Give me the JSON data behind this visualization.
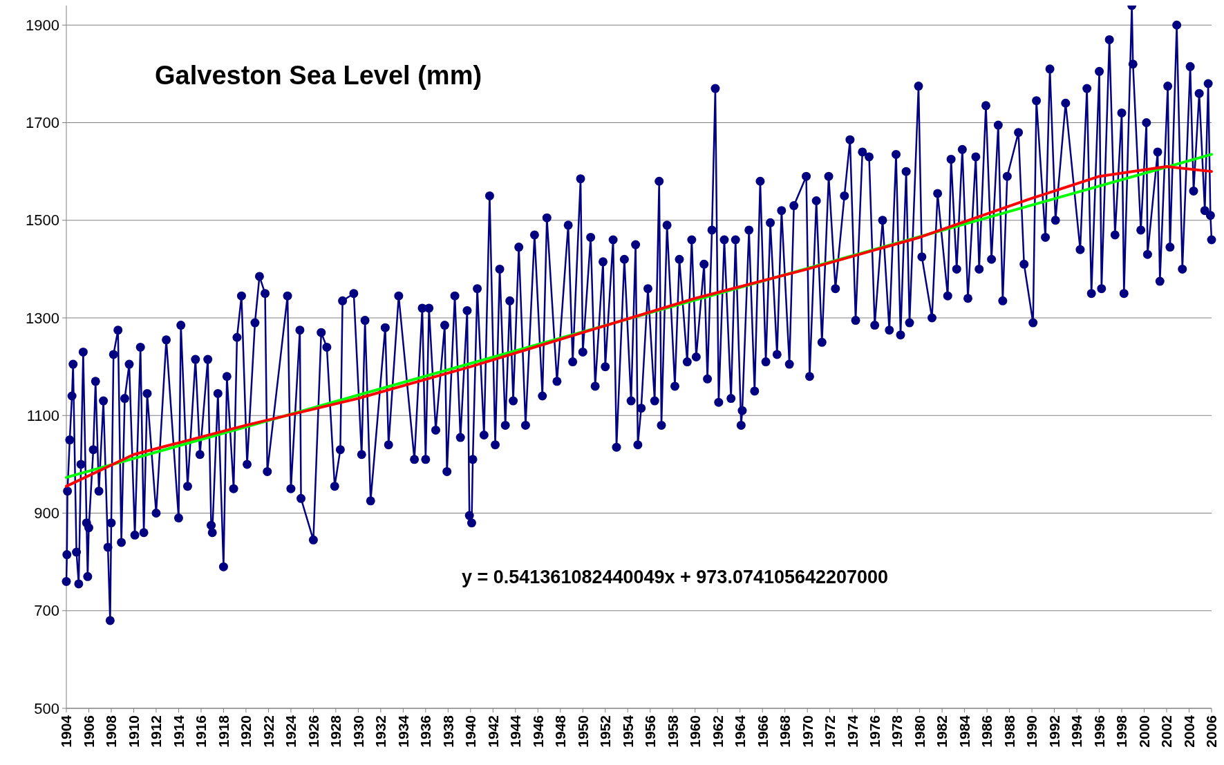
{
  "chart_data": {
    "type": "line",
    "title": "Galveston Sea Level (mm)",
    "annotations": [
      "y = 0.541361082440049x + 973.074105642207000"
    ],
    "xlim": [
      1904,
      2006
    ],
    "xticks": [
      1904,
      1906,
      1908,
      1910,
      1912,
      1914,
      1916,
      1918,
      1920,
      1922,
      1924,
      1926,
      1928,
      1930,
      1932,
      1934,
      1936,
      1938,
      1940,
      1942,
      1944,
      1946,
      1948,
      1950,
      1952,
      1954,
      1956,
      1958,
      1960,
      1962,
      1964,
      1966,
      1968,
      1970,
      1972,
      1974,
      1976,
      1978,
      1980,
      1982,
      1984,
      1986,
      1988,
      1990,
      1992,
      1994,
      1996,
      1998,
      2000,
      2002,
      2004,
      2006
    ],
    "ylim": [
      500,
      1940
    ],
    "yticks": [
      500,
      700,
      900,
      1100,
      1300,
      1500,
      1700,
      1900
    ],
    "grid": "y",
    "marker": "circle",
    "line_style": "solid",
    "series": [
      {
        "color": "#000080",
        "x": [
          1904.0,
          1904.05,
          1904.1,
          1904.3,
          1904.5,
          1904.6,
          1904.9,
          1905.1,
          1905.3,
          1905.5,
          1905.8,
          1905.9,
          1906.0,
          1906.4,
          1906.6,
          1906.9,
          1907.3,
          1907.7,
          1907.9,
          1908.0,
          1908.2,
          1908.6,
          1908.9,
          1909.2,
          1909.6,
          1910.1,
          1910.6,
          1910.9,
          1911.2,
          1912.0,
          1912.9,
          1914.0,
          1914.2,
          1914.8,
          1915.5,
          1915.9,
          1916.6,
          1916.9,
          1917.0,
          1917.5,
          1918.0,
          1918.3,
          1918.9,
          1919.2,
          1919.6,
          1920.1,
          1920.8,
          1921.2,
          1921.7,
          1921.9,
          1923.7,
          1924.0,
          1924.8,
          1924.9,
          1926.0,
          1926.7,
          1927.2,
          1927.9,
          1928.4,
          1928.6,
          1929.6,
          1930.3,
          1930.6,
          1931.1,
          1932.4,
          1932.7,
          1933.6,
          1935.0,
          1935.7,
          1936.0,
          1936.3,
          1936.9,
          1937.7,
          1937.9,
          1938.6,
          1939.1,
          1939.7,
          1939.9,
          1940.1,
          1940.2,
          1940.6,
          1941.2,
          1941.7,
          1942.2,
          1942.6,
          1943.1,
          1943.5,
          1943.8,
          1944.3,
          1944.9,
          1945.7,
          1946.4,
          1946.8,
          1947.7,
          1948.7,
          1949.1,
          1949.8,
          1950.0,
          1950.7,
          1951.1,
          1951.8,
          1952.0,
          1952.7,
          1953.0,
          1953.7,
          1954.3,
          1954.7,
          1954.9,
          1955.2,
          1955.8,
          1956.4,
          1956.8,
          1957.0,
          1957.5,
          1958.2,
          1958.6,
          1959.3,
          1959.7,
          1960.1,
          1960.8,
          1961.1,
          1961.5,
          1961.8,
          1962.1,
          1962.6,
          1963.2,
          1963.6,
          1964.1,
          1964.2,
          1964.8,
          1965.3,
          1965.8,
          1966.3,
          1966.7,
          1967.3,
          1967.7,
          1968.4,
          1968.8,
          1969.9,
          1970.2,
          1970.8,
          1971.3,
          1971.9,
          1972.5,
          1973.3,
          1973.8,
          1974.3,
          1974.9,
          1975.5,
          1976.0,
          1976.7,
          1977.3,
          1977.9,
          1978.3,
          1978.8,
          1979.1,
          1979.9,
          1980.2,
          1981.1,
          1981.6,
          1982.5,
          1982.8,
          1983.3,
          1983.8,
          1984.3,
          1985.0,
          1985.3,
          1985.9,
          1986.4,
          1987.0,
          1987.4,
          1987.8,
          1988.8,
          1989.3,
          1990.1,
          1990.4,
          1991.2,
          1991.6,
          1992.1,
          1993.0,
          1994.3,
          1994.9,
          1995.3,
          1996.0,
          1996.2,
          1996.9,
          1997.4,
          1998.0,
          1998.2,
          1998.9,
          1999.0,
          1999.7,
          2000.2,
          2000.3,
          2001.2,
          2001.4,
          2002.1,
          2002.3,
          2002.9,
          2003.4,
          2004.1,
          2004.4,
          2004.9,
          2005.4,
          2005.7,
          2005.9,
          2006.0
        ],
        "values": [
          760,
          815,
          945,
          1050,
          1140,
          1205,
          820,
          755,
          1000,
          1230,
          880,
          770,
          870,
          1030,
          1170,
          945,
          1130,
          830,
          680,
          880,
          1225,
          1275,
          840,
          1135,
          1205,
          855,
          1240,
          860,
          1145,
          900,
          1255,
          890,
          1285,
          955,
          1215,
          1020,
          1215,
          875,
          860,
          1145,
          790,
          1180,
          950,
          1260,
          1345,
          1000,
          1290,
          1385,
          1350,
          985,
          1345,
          950,
          1275,
          930,
          845,
          1270,
          1240,
          955,
          1030,
          1335,
          1350,
          1020,
          1295,
          925,
          1280,
          1040,
          1345,
          1010,
          1320,
          1010,
          1320,
          1070,
          1285,
          985,
          1345,
          1055,
          1315,
          895,
          880,
          1010,
          1360,
          1060,
          1550,
          1040,
          1400,
          1080,
          1335,
          1130,
          1445,
          1080,
          1470,
          1140,
          1505,
          1170,
          1490,
          1210,
          1585,
          1230,
          1465,
          1160,
          1415,
          1200,
          1460,
          1035,
          1420,
          1130,
          1450,
          1040,
          1115,
          1360,
          1130,
          1580,
          1080,
          1490,
          1160,
          1420,
          1210,
          1460,
          1220,
          1410,
          1175,
          1480,
          1770,
          1127,
          1460,
          1135,
          1460,
          1080,
          1110,
          1480,
          1150,
          1580,
          1210,
          1495,
          1225,
          1520,
          1205,
          1530,
          1590,
          1180,
          1540,
          1250,
          1590,
          1360,
          1550,
          1665,
          1295,
          1640,
          1630,
          1285,
          1500,
          1275,
          1635,
          1265,
          1600,
          1290,
          1775,
          1425,
          1300,
          1555,
          1345,
          1625,
          1400,
          1645,
          1340,
          1630,
          1400,
          1735,
          1420,
          1695,
          1335,
          1590,
          1680,
          1410,
          1290,
          1745,
          1465,
          1810,
          1500,
          1740,
          1440,
          1770,
          1350,
          1805,
          1360,
          1870,
          1470,
          1720,
          1350,
          1940,
          1820,
          1480,
          1700,
          1430,
          1640,
          1375,
          1775,
          1445,
          1900,
          1400,
          1815,
          1560,
          1760,
          1520,
          1780,
          1510,
          1460
        ]
      },
      {
        "color": "#00ff00",
        "marker": "none",
        "x": [
          1904,
          2006
        ],
        "values": [
          973,
          1635
        ]
      },
      {
        "color": "#ff0000",
        "marker": "none",
        "x": [
          1904,
          1910,
          1920,
          1930,
          1940,
          1950,
          1960,
          1970,
          1980,
          1990,
          1996,
          2002,
          2006
        ],
        "values": [
          955,
          1020,
          1080,
          1135,
          1200,
          1270,
          1340,
          1400,
          1465,
          1545,
          1590,
          1610,
          1600
        ]
      }
    ]
  }
}
